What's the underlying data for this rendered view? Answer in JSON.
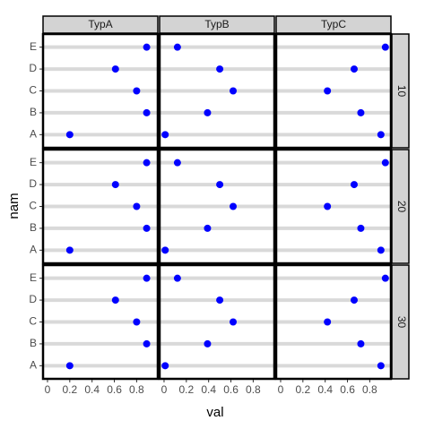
{
  "chart_data": {
    "type": "dot",
    "x_label": "val",
    "y_label": "nam",
    "columns": [
      "TypA",
      "TypB",
      "TypC"
    ],
    "rows": [
      "10",
      "20",
      "30"
    ],
    "categories": [
      "A",
      "B",
      "C",
      "D",
      "E"
    ],
    "values": [
      [
        [
          0.2,
          0.89,
          0.8,
          0.61,
          0.89
        ],
        [
          0.01,
          0.39,
          0.62,
          0.5,
          0.12
        ],
        [
          0.9,
          0.72,
          0.42,
          0.66,
          0.94
        ]
      ],
      [
        [
          0.2,
          0.89,
          0.8,
          0.61,
          0.89
        ],
        [
          0.01,
          0.39,
          0.62,
          0.5,
          0.12
        ],
        [
          0.9,
          0.72,
          0.42,
          0.66,
          0.94
        ]
      ],
      [
        [
          0.2,
          0.89,
          0.8,
          0.61,
          0.89
        ],
        [
          0.01,
          0.39,
          0.62,
          0.5,
          0.12
        ],
        [
          0.9,
          0.72,
          0.42,
          0.66,
          0.94
        ]
      ]
    ],
    "color": "#0000ff",
    "line_color": "#d9d9d9",
    "xlim": [
      -0.04,
      0.99
    ],
    "xticks": [
      0.0,
      0.2,
      0.4,
      0.6,
      0.8
    ]
  }
}
